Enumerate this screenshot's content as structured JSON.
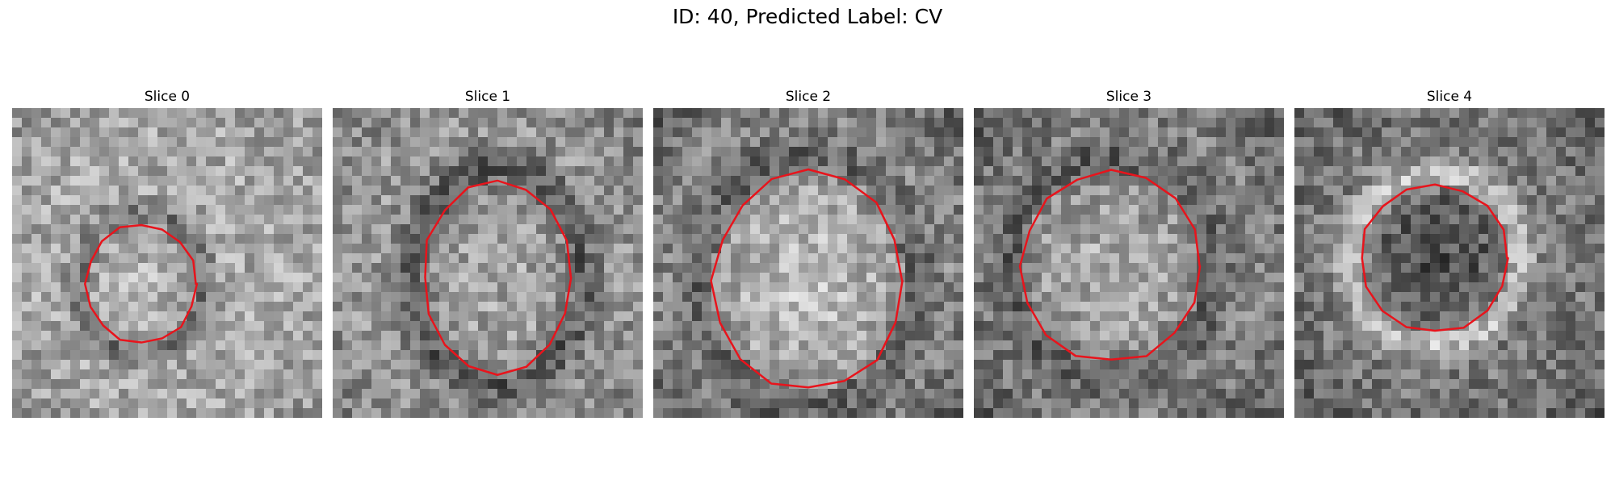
{
  "figure": {
    "title": "ID: 40, Predicted Label: CV"
  },
  "colors": {
    "contour": "#e8141c",
    "background": "#ffffff",
    "text": "#000000"
  },
  "slices": [
    {
      "label": "Slice 0"
    },
    {
      "label": "Slice 1"
    },
    {
      "label": "Slice 2"
    },
    {
      "label": "Slice 3"
    },
    {
      "label": "Slice 4"
    }
  ]
}
